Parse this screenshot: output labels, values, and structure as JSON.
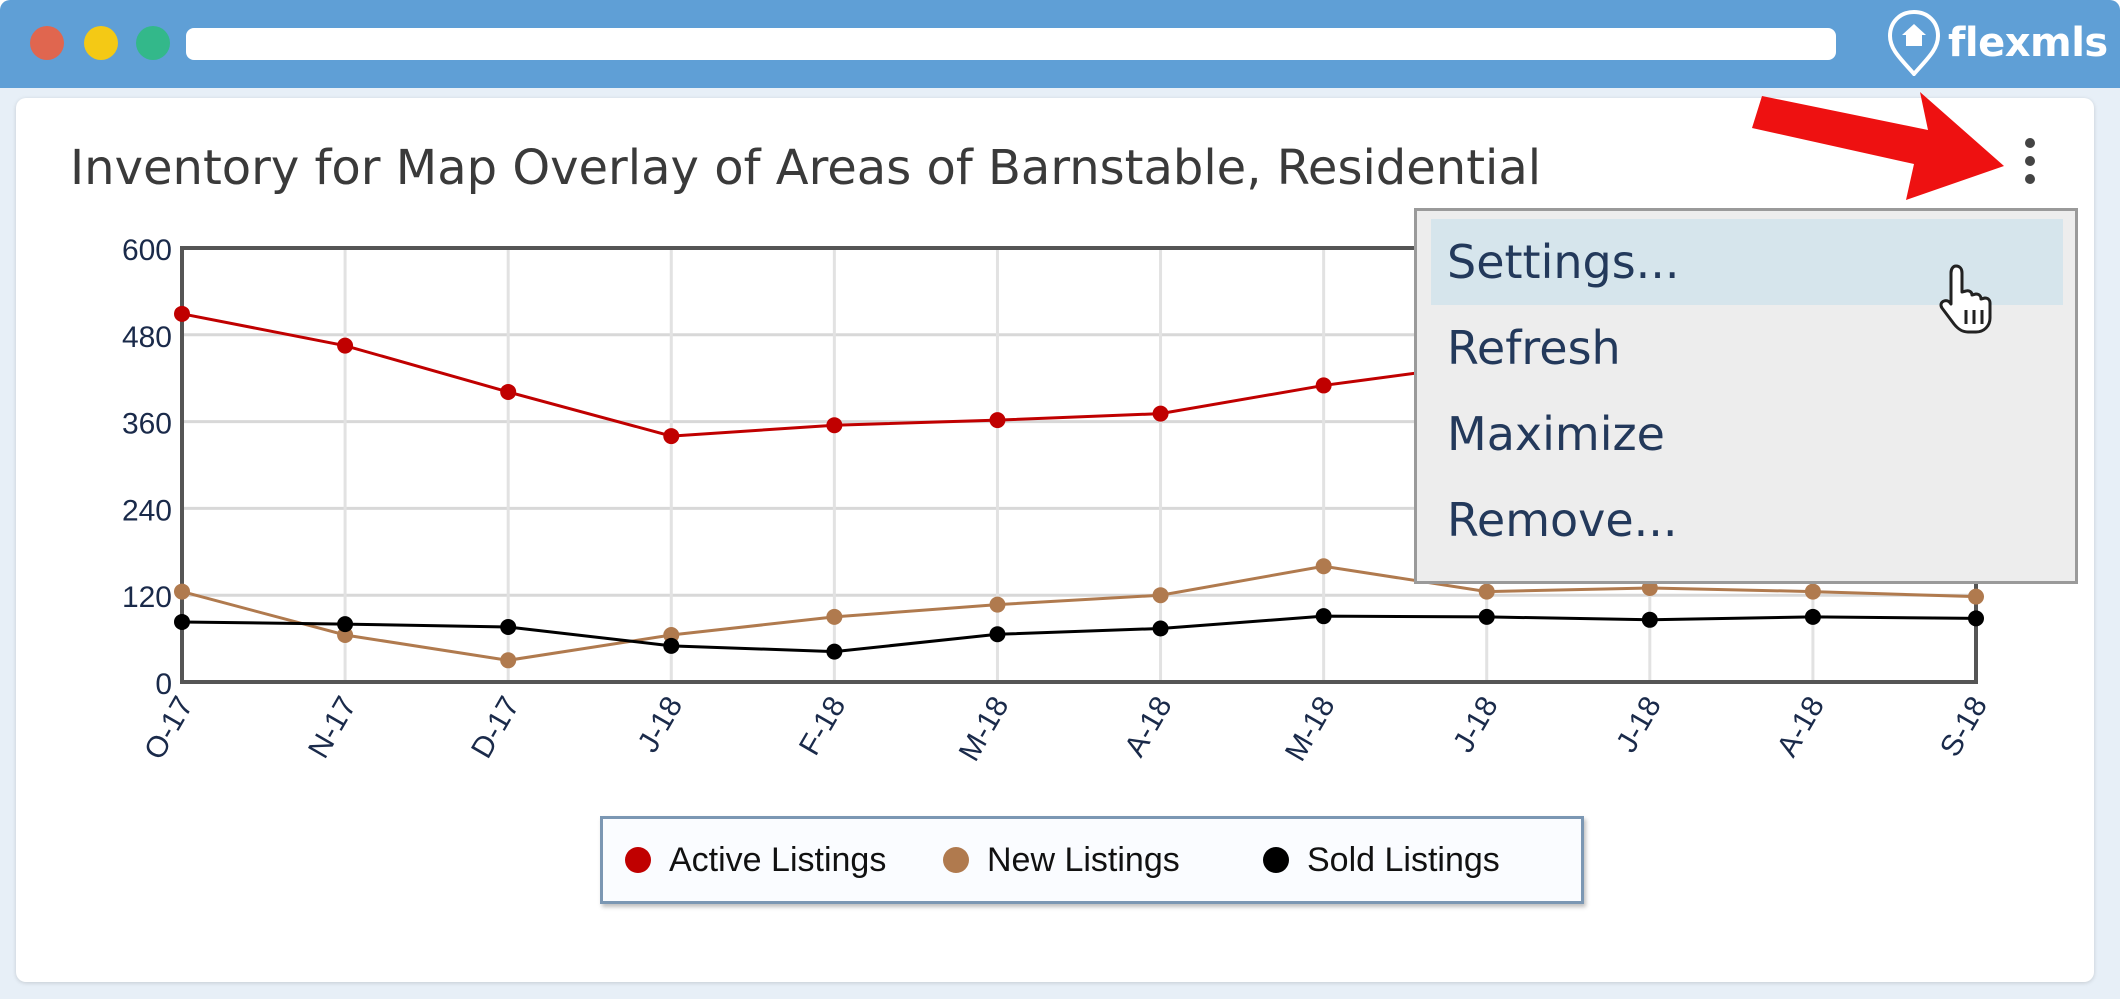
{
  "window": {
    "brand": "flexmls"
  },
  "widget": {
    "title": "Inventory for Map Overlay of Areas of Barnstable, Residential",
    "menu_icon": "kebab-menu-icon"
  },
  "context_menu": {
    "items": [
      {
        "label": "Settings...",
        "hovered": true
      },
      {
        "label": "Refresh"
      },
      {
        "label": "Maximize"
      },
      {
        "label": "Remove..."
      }
    ]
  },
  "colors": {
    "active": "#c00000",
    "new": "#b07a4e",
    "sold": "#000000",
    "annotation_arrow": "#ee1111"
  },
  "chart_data": {
    "type": "line",
    "categories": [
      "O-17",
      "N-17",
      "D-17",
      "J-18",
      "F-18",
      "M-18",
      "A-18",
      "M-18",
      "J-18",
      "J-18",
      "A-18",
      "S-18"
    ],
    "ylim": [
      0,
      600
    ],
    "yticks": [
      "0",
      "120",
      "240",
      "360",
      "480",
      "600"
    ],
    "grid": true,
    "legend_position": "bottom",
    "series": [
      {
        "name": "Active Listings",
        "values": [
          509,
          465,
          401,
          340,
          355,
          362,
          371,
          410,
          440,
          null,
          null,
          null
        ]
      },
      {
        "name": "New Listings",
        "values": [
          125,
          65,
          30,
          65,
          90,
          107,
          120,
          160,
          125,
          130,
          125,
          118
        ]
      },
      {
        "name": "Sold Listings",
        "values": [
          83,
          80,
          76,
          50,
          42,
          66,
          74,
          91,
          90,
          86,
          90,
          88
        ]
      }
    ]
  }
}
